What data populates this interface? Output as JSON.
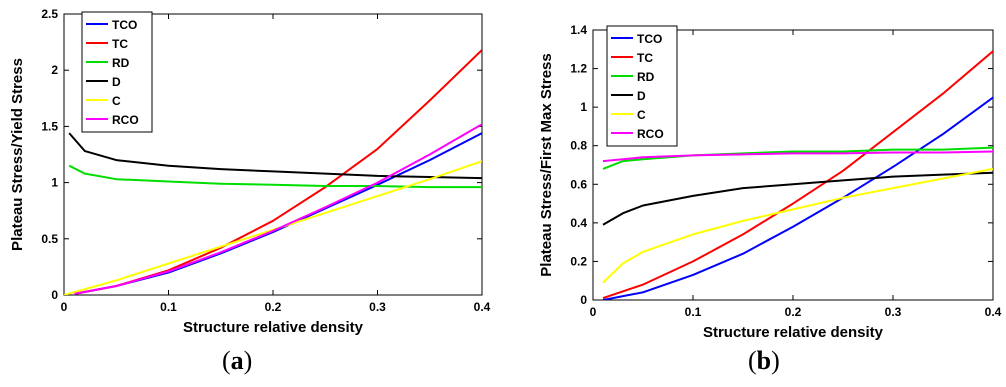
{
  "chart_data": [
    {
      "type": "line",
      "panel_label": "a",
      "xlabel": "Structure relative density",
      "ylabel": "Plateau Stress/Yield Stress",
      "xlim": [
        0,
        0.4
      ],
      "ylim": [
        0,
        2.5
      ],
      "xticks": [
        0,
        0.1,
        0.2,
        0.3,
        0.4
      ],
      "xtick_labels": [
        "0",
        "0.1",
        "0.2",
        "0.3",
        "0.4"
      ],
      "yticks": [
        0,
        0.5,
        1,
        1.5,
        2,
        2.5
      ],
      "ytick_labels": [
        "0",
        "0.5",
        "1",
        "1.5",
        "2",
        "2.5"
      ],
      "legend_position": "top-left",
      "grid": false,
      "series": [
        {
          "name": "TCO",
          "color": "#0000ff",
          "x": [
            0.01,
            0.05,
            0.1,
            0.15,
            0.2,
            0.25,
            0.3,
            0.35,
            0.4
          ],
          "y": [
            0.01,
            0.08,
            0.2,
            0.37,
            0.56,
            0.77,
            0.98,
            1.2,
            1.44
          ]
        },
        {
          "name": "TC",
          "color": "#ff0000",
          "x": [
            0.01,
            0.05,
            0.1,
            0.15,
            0.2,
            0.25,
            0.3,
            0.35,
            0.4
          ],
          "y": [
            0.01,
            0.08,
            0.22,
            0.42,
            0.66,
            0.96,
            1.3,
            1.73,
            2.18
          ]
        },
        {
          "name": "RD",
          "color": "#00dd00",
          "x": [
            0.005,
            0.02,
            0.05,
            0.1,
            0.15,
            0.2,
            0.25,
            0.3,
            0.35,
            0.4
          ],
          "y": [
            1.15,
            1.08,
            1.03,
            1.01,
            0.99,
            0.98,
            0.97,
            0.97,
            0.96,
            0.96
          ]
        },
        {
          "name": "D",
          "color": "#000000",
          "x": [
            0.005,
            0.02,
            0.05,
            0.1,
            0.15,
            0.2,
            0.25,
            0.3,
            0.35,
            0.4
          ],
          "y": [
            1.44,
            1.28,
            1.2,
            1.15,
            1.12,
            1.1,
            1.08,
            1.06,
            1.05,
            1.04
          ]
        },
        {
          "name": "C",
          "color": "#ffff00",
          "x": [
            0.0,
            0.05,
            0.1,
            0.15,
            0.2,
            0.25,
            0.3,
            0.35,
            0.4
          ],
          "y": [
            0.0,
            0.13,
            0.28,
            0.43,
            0.58,
            0.73,
            0.88,
            1.03,
            1.19
          ]
        },
        {
          "name": "RCO",
          "color": "#ff00ff",
          "x": [
            0.01,
            0.05,
            0.1,
            0.15,
            0.2,
            0.25,
            0.3,
            0.35,
            0.4
          ],
          "y": [
            0.01,
            0.08,
            0.21,
            0.38,
            0.57,
            0.78,
            1.0,
            1.25,
            1.52
          ]
        }
      ]
    },
    {
      "type": "line",
      "panel_label": "b",
      "xlabel": "Structure relative density",
      "ylabel": "Plateau Stress/First Max Stress",
      "xlim": [
        0,
        0.4
      ],
      "ylim": [
        0,
        1.4
      ],
      "xticks": [
        0,
        0.1,
        0.2,
        0.3,
        0.4
      ],
      "xtick_labels": [
        "0",
        "0.1",
        "0.2",
        "0.3",
        "0.4"
      ],
      "yticks": [
        0,
        0.2,
        0.4,
        0.6,
        0.8,
        1,
        1.2,
        1.4
      ],
      "ytick_labels": [
        "0",
        "0.2",
        "0.4",
        "0.6",
        "0.8",
        "1",
        "1.2",
        "1.4"
      ],
      "legend_position": "top-left",
      "grid": false,
      "series": [
        {
          "name": "TCO",
          "color": "#0000ff",
          "x": [
            0.01,
            0.05,
            0.1,
            0.15,
            0.2,
            0.25,
            0.3,
            0.35,
            0.4
          ],
          "y": [
            0.0,
            0.04,
            0.13,
            0.24,
            0.38,
            0.53,
            0.69,
            0.86,
            1.05
          ]
        },
        {
          "name": "TC",
          "color": "#ff0000",
          "x": [
            0.01,
            0.05,
            0.1,
            0.15,
            0.2,
            0.25,
            0.3,
            0.35,
            0.4
          ],
          "y": [
            0.01,
            0.08,
            0.2,
            0.34,
            0.5,
            0.67,
            0.87,
            1.07,
            1.29
          ]
        },
        {
          "name": "RD",
          "color": "#00dd00",
          "x": [
            0.01,
            0.03,
            0.05,
            0.1,
            0.15,
            0.2,
            0.25,
            0.3,
            0.35,
            0.4
          ],
          "y": [
            0.68,
            0.72,
            0.73,
            0.75,
            0.76,
            0.77,
            0.77,
            0.78,
            0.78,
            0.79
          ]
        },
        {
          "name": "D",
          "color": "#000000",
          "x": [
            0.01,
            0.03,
            0.05,
            0.1,
            0.15,
            0.2,
            0.25,
            0.3,
            0.35,
            0.4
          ],
          "y": [
            0.39,
            0.45,
            0.49,
            0.54,
            0.58,
            0.6,
            0.62,
            0.64,
            0.65,
            0.66
          ]
        },
        {
          "name": "C",
          "color": "#ffff00",
          "x": [
            0.01,
            0.03,
            0.05,
            0.1,
            0.15,
            0.2,
            0.25,
            0.3,
            0.35,
            0.4
          ],
          "y": [
            0.09,
            0.19,
            0.25,
            0.34,
            0.41,
            0.47,
            0.53,
            0.58,
            0.63,
            0.68
          ]
        },
        {
          "name": "RCO",
          "color": "#ff00ff",
          "x": [
            0.01,
            0.05,
            0.1,
            0.15,
            0.2,
            0.25,
            0.3,
            0.35,
            0.4
          ],
          "y": [
            0.72,
            0.74,
            0.75,
            0.755,
            0.76,
            0.76,
            0.765,
            0.765,
            0.77
          ]
        }
      ]
    }
  ],
  "captions": {
    "a": "(a)",
    "b": "(b)"
  }
}
